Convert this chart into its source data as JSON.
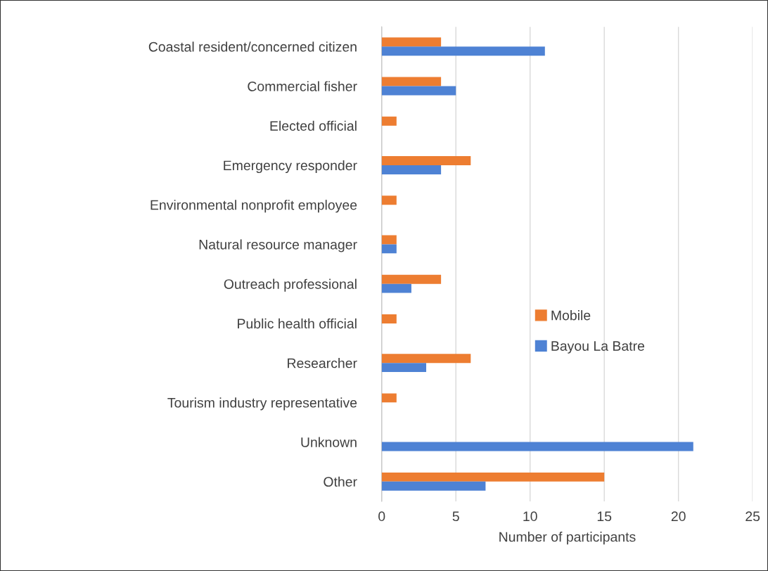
{
  "chart_data": {
    "type": "bar",
    "orientation": "horizontal",
    "categories": [
      "Coastal resident/concerned citizen",
      "Commercial fisher",
      "Elected official",
      "Emergency responder",
      "Environmental nonprofit employee",
      "Natural resource manager",
      "Outreach professional",
      "Public health official",
      "Researcher",
      "Tourism industry representative",
      "Unknown",
      "Other"
    ],
    "series": [
      {
        "name": "Mobile",
        "color": "#ed7d31",
        "values": [
          4,
          4,
          1,
          6,
          1,
          1,
          4,
          1,
          6,
          1,
          0,
          15
        ]
      },
      {
        "name": "Bayou La Batre",
        "color": "#4e82d4",
        "values": [
          11,
          5,
          0,
          4,
          0,
          1,
          2,
          0,
          3,
          0,
          21,
          7
        ]
      }
    ],
    "xlabel": "Number of participants",
    "xlim": [
      0,
      25
    ],
    "xticks": [
      0,
      5,
      10,
      15,
      20,
      25
    ],
    "grid": "x",
    "legend": "right"
  }
}
